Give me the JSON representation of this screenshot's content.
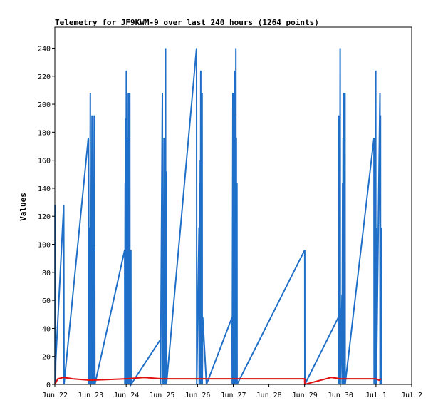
{
  "chart_data": {
    "type": "line",
    "title": "Telemetry for JF9KWM-9 over last 240 hours (1264 points)",
    "ylabel": "Values",
    "xlabel": "",
    "ylim": [
      0,
      255
    ],
    "yticks": [
      0,
      20,
      40,
      60,
      80,
      100,
      120,
      140,
      160,
      180,
      200,
      220,
      240
    ],
    "xlim": [
      "2024-06-22T00:00",
      "2024-07-02T00:00"
    ],
    "xticks": [
      {
        "t": "2024-06-22T00:00",
        "label": "Jun 22"
      },
      {
        "t": "2024-06-23T00:00",
        "label": "Jun 23"
      },
      {
        "t": "2024-06-24T00:00",
        "label": "Jun 24"
      },
      {
        "t": "2024-06-25T00:00",
        "label": "Jun 25"
      },
      {
        "t": "2024-06-26T00:00",
        "label": "Jun 26"
      },
      {
        "t": "2024-06-27T00:00",
        "label": "Jun 27"
      },
      {
        "t": "2024-06-28T00:00",
        "label": "Jun 28"
      },
      {
        "t": "2024-06-29T00:00",
        "label": "Jun 29"
      },
      {
        "t": "2024-06-30T00:00",
        "label": "Jun 30"
      },
      {
        "t": "2024-07-01T00:00",
        "label": "Jul 1"
      },
      {
        "t": "2024-07-02T00:00",
        "label": "Jul 2"
      }
    ],
    "grid": false,
    "series": [
      {
        "color": "#1f6fc8",
        "points": [
          [
            "2024-06-22T00:05",
            128
          ],
          [
            "2024-06-22T00:10",
            0
          ],
          [
            "2024-06-22T00:20",
            32
          ],
          [
            "2024-06-22T00:25",
            0
          ],
          [
            "2024-06-22T00:35",
            16
          ],
          [
            "2024-06-22T06:00",
            128
          ],
          [
            "2024-06-22T06:10",
            0
          ],
          [
            "2024-06-22T22:30",
            176
          ],
          [
            "2024-06-22T22:35",
            0
          ],
          [
            "2024-06-22T23:00",
            112
          ],
          [
            "2024-06-22T23:05",
            0
          ],
          [
            "2024-06-22T23:20",
            56
          ],
          [
            "2024-06-22T23:25",
            0
          ],
          [
            "2024-06-22T23:50",
            208
          ],
          [
            "2024-06-22T23:55",
            0
          ],
          [
            "2024-06-23T00:20",
            16
          ],
          [
            "2024-06-23T00:25",
            0
          ],
          [
            "2024-06-23T01:00",
            192
          ],
          [
            "2024-06-23T01:05",
            0
          ],
          [
            "2024-06-23T01:30",
            144
          ],
          [
            "2024-06-23T01:35",
            0
          ],
          [
            "2024-06-23T01:50",
            64
          ],
          [
            "2024-06-23T01:55",
            0
          ],
          [
            "2024-06-23T02:30",
            192
          ],
          [
            "2024-06-23T02:35",
            0
          ],
          [
            "2024-06-23T02:50",
            96
          ],
          [
            "2024-06-23T02:55",
            0
          ],
          [
            "2024-06-23T23:00",
            96
          ],
          [
            "2024-06-23T23:05",
            0
          ],
          [
            "2024-06-23T23:20",
            144
          ],
          [
            "2024-06-23T23:25",
            0
          ],
          [
            "2024-06-23T23:45",
            190
          ],
          [
            "2024-06-23T23:50",
            0
          ],
          [
            "2024-06-24T00:05",
            224
          ],
          [
            "2024-06-24T00:10",
            0
          ],
          [
            "2024-06-24T00:25",
            176
          ],
          [
            "2024-06-24T00:30",
            0
          ],
          [
            "2024-06-24T00:45",
            64
          ],
          [
            "2024-06-24T00:50",
            0
          ],
          [
            "2024-06-24T01:00",
            144
          ],
          [
            "2024-06-24T01:05",
            0
          ],
          [
            "2024-06-24T01:25",
            208
          ],
          [
            "2024-06-24T01:30",
            0
          ],
          [
            "2024-06-24T01:45",
            128
          ],
          [
            "2024-06-24T01:50",
            0
          ],
          [
            "2024-06-24T02:05",
            144
          ],
          [
            "2024-06-24T02:10",
            0
          ],
          [
            "2024-06-24T02:25",
            208
          ],
          [
            "2024-06-24T02:30",
            0
          ],
          [
            "2024-06-24T02:45",
            96
          ],
          [
            "2024-06-24T02:50",
            0
          ],
          [
            "2024-06-24T03:10",
            96
          ],
          [
            "2024-06-24T03:15",
            0
          ],
          [
            "2024-06-24T23:00",
            32
          ],
          [
            "2024-06-24T23:05",
            0
          ],
          [
            "2024-06-25T00:20",
            208
          ],
          [
            "2024-06-25T00:25",
            0
          ],
          [
            "2024-06-25T00:40",
            104
          ],
          [
            "2024-06-25T00:45",
            0
          ],
          [
            "2024-06-25T01:00",
            128
          ],
          [
            "2024-06-25T01:05",
            0
          ],
          [
            "2024-06-25T01:25",
            176
          ],
          [
            "2024-06-25T01:30",
            0
          ],
          [
            "2024-06-25T01:50",
            128
          ],
          [
            "2024-06-25T01:55",
            0
          ],
          [
            "2024-06-25T02:30",
            240
          ],
          [
            "2024-06-25T02:35",
            0
          ],
          [
            "2024-06-25T03:00",
            152
          ],
          [
            "2024-06-25T03:05",
            0
          ],
          [
            "2024-06-25T23:20",
            240
          ],
          [
            "2024-06-25T23:25",
            0
          ],
          [
            "2024-06-26T01:00",
            112
          ],
          [
            "2024-06-26T01:05",
            0
          ],
          [
            "2024-06-26T01:25",
            144
          ],
          [
            "2024-06-26T01:30",
            0
          ],
          [
            "2024-06-26T01:50",
            160
          ],
          [
            "2024-06-26T01:55",
            0
          ],
          [
            "2024-06-26T02:10",
            224
          ],
          [
            "2024-06-26T02:15",
            0
          ],
          [
            "2024-06-26T02:35",
            176
          ],
          [
            "2024-06-26T02:40",
            0
          ],
          [
            "2024-06-26T03:05",
            208
          ],
          [
            "2024-06-26T03:10",
            0
          ],
          [
            "2024-06-26T03:30",
            48
          ],
          [
            "2024-06-26T06:00",
            0
          ],
          [
            "2024-06-26T23:15",
            48
          ],
          [
            "2024-06-26T23:20",
            0
          ],
          [
            "2024-06-26T23:45",
            208
          ],
          [
            "2024-06-26T23:50",
            0
          ],
          [
            "2024-06-27T00:05",
            192
          ],
          [
            "2024-06-27T00:10",
            0
          ],
          [
            "2024-06-27T00:30",
            32
          ],
          [
            "2024-06-27T00:35",
            0
          ],
          [
            "2024-06-27T01:00",
            224
          ],
          [
            "2024-06-27T01:05",
            0
          ],
          [
            "2024-06-27T01:20",
            144
          ],
          [
            "2024-06-27T01:25",
            0
          ],
          [
            "2024-06-27T01:45",
            240
          ],
          [
            "2024-06-27T01:50",
            0
          ],
          [
            "2024-06-27T02:05",
            176
          ],
          [
            "2024-06-27T02:10",
            0
          ],
          [
            "2024-06-27T02:30",
            144
          ],
          [
            "2024-06-27T02:35",
            0
          ],
          [
            "2024-06-29T00:05",
            96
          ],
          [
            "2024-06-29T00:10",
            0
          ],
          [
            "2024-06-29T22:45",
            48
          ],
          [
            "2024-06-29T22:50",
            0
          ],
          [
            "2024-06-29T23:05",
            192
          ],
          [
            "2024-06-29T23:10",
            0
          ],
          [
            "2024-06-29T23:35",
            128
          ],
          [
            "2024-06-29T23:40",
            0
          ],
          [
            "2024-06-29T23:55",
            240
          ],
          [
            "2024-06-30T00:00",
            0
          ],
          [
            "2024-06-30T01:10",
            64
          ],
          [
            "2024-06-30T01:15",
            0
          ],
          [
            "2024-06-30T01:35",
            144
          ],
          [
            "2024-06-30T01:40",
            0
          ],
          [
            "2024-06-30T01:55",
            176
          ],
          [
            "2024-06-30T02:00",
            0
          ],
          [
            "2024-06-30T02:20",
            208
          ],
          [
            "2024-06-30T02:25",
            0
          ],
          [
            "2024-06-30T02:45",
            192
          ],
          [
            "2024-06-30T02:50",
            0
          ],
          [
            "2024-06-30T03:10",
            208
          ],
          [
            "2024-06-30T03:15",
            0
          ],
          [
            "2024-06-30T22:40",
            176
          ],
          [
            "2024-06-30T22:45",
            0
          ],
          [
            "2024-06-30T23:30",
            32
          ],
          [
            "2024-06-30T23:35",
            0
          ],
          [
            "2024-06-30T23:50",
            224
          ],
          [
            "2024-06-30T23:55",
            0
          ],
          [
            "2024-07-01T00:10",
            112
          ],
          [
            "2024-07-01T00:15",
            0
          ],
          [
            "2024-07-01T02:40",
            208
          ],
          [
            "2024-07-01T02:45",
            0
          ],
          [
            "2024-07-01T03:00",
            192
          ],
          [
            "2024-07-01T03:05",
            0
          ],
          [
            "2024-07-01T03:25",
            112
          ],
          [
            "2024-07-01T03:30",
            0
          ]
        ]
      },
      {
        "color": "#e01010",
        "points": [
          [
            "2024-06-22T00:00",
            0
          ],
          [
            "2024-06-22T02:00",
            4
          ],
          [
            "2024-06-22T06:00",
            5
          ],
          [
            "2024-06-22T12:00",
            4
          ],
          [
            "2024-06-23T00:00",
            3
          ],
          [
            "2024-06-24T00:00",
            4
          ],
          [
            "2024-06-24T12:00",
            5
          ],
          [
            "2024-06-25T00:00",
            4
          ],
          [
            "2024-06-26T00:00",
            4
          ],
          [
            "2024-06-27T00:00",
            4
          ],
          [
            "2024-06-28T00:00",
            4
          ],
          [
            "2024-06-29T00:00",
            4
          ],
          [
            "2024-06-29T00:05",
            0
          ],
          [
            "2024-06-29T18:00",
            5
          ],
          [
            "2024-06-30T00:00",
            4
          ],
          [
            "2024-07-01T00:00",
            4
          ],
          [
            "2024-07-01T02:00",
            3
          ],
          [
            "2024-07-01T03:30",
            4
          ]
        ]
      }
    ]
  }
}
